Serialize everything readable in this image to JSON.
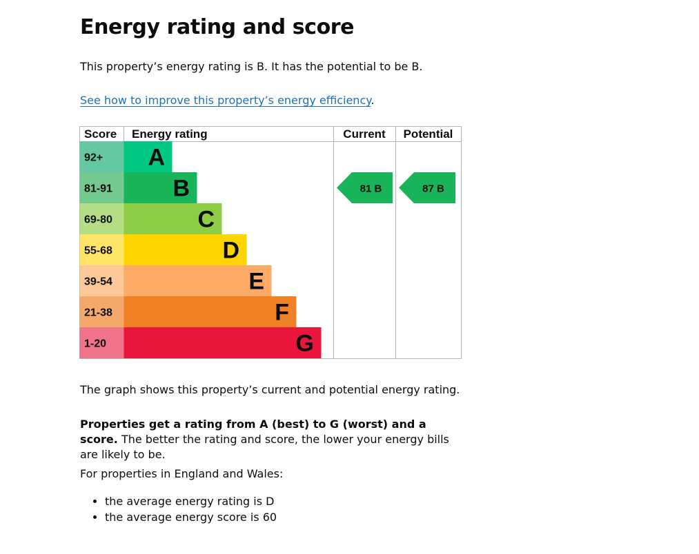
{
  "page": {
    "title": "Energy rating and score",
    "intro": "This property’s energy rating is B. It has the potential to be B.",
    "improve_link": "See how to improve this property’s energy efficiency",
    "improve_link_suffix": ".",
    "graph_caption": "The graph shows this property’s current and potential energy rating.",
    "ratings_bold": "Properties get a rating from A (best) to G (worst) and a score.",
    "ratings_rest": " The better the rating and score, the lower your energy bills are likely to be.",
    "ew_intro": "For properties in England and Wales:",
    "averages": [
      "the average energy rating is D",
      "the average energy score is 60"
    ]
  },
  "chart_data": {
    "type": "bar",
    "headers": {
      "score": "Score",
      "rating": "Energy rating",
      "current": "Current",
      "potential": "Potential"
    },
    "bands": [
      {
        "letter": "A",
        "range": "92+",
        "min": 92,
        "max": 100,
        "color": "#00c781",
        "score_bg": "#64c9a3"
      },
      {
        "letter": "B",
        "range": "81-91",
        "min": 81,
        "max": 91,
        "color": "#19b459",
        "score_bg": "#74c98e"
      },
      {
        "letter": "C",
        "range": "69-80",
        "min": 69,
        "max": 80,
        "color": "#8dce46",
        "score_bg": "#b4de84"
      },
      {
        "letter": "D",
        "range": "55-68",
        "min": 55,
        "max": 68,
        "color": "#ffd500",
        "score_bg": "#ffe466"
      },
      {
        "letter": "E",
        "range": "39-54",
        "min": 39,
        "max": 54,
        "color": "#fcaa65",
        "score_bg": "#fdc898"
      },
      {
        "letter": "F",
        "range": "21-38",
        "min": 21,
        "max": 38,
        "color": "#ef8023",
        "score_bg": "#f4a96a"
      },
      {
        "letter": "G",
        "range": "1-20",
        "min": 1,
        "max": 20,
        "color": "#e9153b",
        "score_bg": "#f07389"
      }
    ],
    "current": {
      "score": 81,
      "letter": "B",
      "label": "81  B"
    },
    "potential": {
      "score": 87,
      "letter": "B",
      "label": "87  B"
    }
  }
}
